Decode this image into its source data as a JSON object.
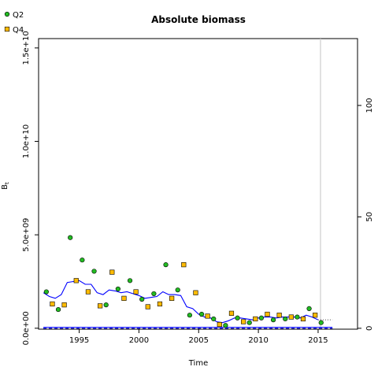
{
  "chart_data": {
    "type": "scatter",
    "title": "Absolute biomass",
    "xlabel": "Time",
    "ylabel": "B",
    "ylabel_sub": "t",
    "xlim": [
      1991.6,
      2018.3
    ],
    "ylim": [
      -50000000.0,
      15500000000.0
    ],
    "y2lim": [
      -0.4,
      130
    ],
    "x_ticks": [
      1995,
      2000,
      2005,
      2010,
      2015
    ],
    "y_ticks": [
      0,
      5000000000.0,
      10000000000.0,
      15000000000.0
    ],
    "y_tick_labels": [
      "0.0e+00",
      "5.0e+09",
      "1.0e+10",
      "1.5e+10"
    ],
    "y2_ticks": [
      0,
      50,
      100
    ],
    "y2_tick_labels": [
      "0",
      "50",
      "100"
    ],
    "x_tick_labels": [
      "1995",
      "2000",
      "2005",
      "2010",
      "2015"
    ],
    "legend": {
      "placement": "top-left",
      "entries": [
        {
          "label": "Q2",
          "color": "#22bb22"
        },
        {
          "label": "Q4",
          "color": "#ffbb00"
        }
      ]
    },
    "vline_x": 2015.2,
    "reference_lines": {
      "solid_blue_level": 50000000.0,
      "dashed_blue_level": 0.0,
      "dashed_black_level": 0.0
    },
    "series": [
      {
        "name": "Q2",
        "kind": "points",
        "color": "#22bb22",
        "x": [
          1992.25,
          1993.25,
          1994.25,
          1995.25,
          1996.25,
          1997.25,
          1998.25,
          1999.25,
          2000.25,
          2001.25,
          2002.25,
          2003.25,
          2004.25,
          2005.25,
          2006.25,
          2007.25,
          2008.25,
          2009.25,
          2010.25,
          2011.25,
          2012.25,
          2013.25,
          2014.25,
          2015.25
        ],
        "y": [
          1950000000.0,
          1000000000.0,
          4850000000.0,
          3650000000.0,
          3050000000.0,
          1250000000.0,
          2100000000.0,
          2550000000.0,
          1550000000.0,
          1850000000.0,
          3400000000.0,
          2050000000.0,
          700000000.0,
          750000000.0,
          500000000.0,
          150000000.0,
          550000000.0,
          300000000.0,
          550000000.0,
          450000000.0,
          500000000.0,
          600000000.0,
          1050000000.0,
          300000000.0
        ]
      },
      {
        "name": "Q4",
        "kind": "points",
        "color": "#ffbb00",
        "x": [
          1992.75,
          1993.75,
          1994.75,
          1995.75,
          1996.75,
          1997.75,
          1998.75,
          1999.75,
          2000.75,
          2001.75,
          2002.75,
          2003.75,
          2004.75,
          2005.75,
          2006.75,
          2007.75,
          2008.75,
          2009.75,
          2010.75,
          2011.75,
          2012.75,
          2013.75,
          2014.75
        ],
        "y": [
          1300000000.0,
          1250000000.0,
          2550000000.0,
          1950000000.0,
          1200000000.0,
          3000000000.0,
          1600000000.0,
          1950000000.0,
          1150000000.0,
          1300000000.0,
          1600000000.0,
          3400000000.0,
          1900000000.0,
          650000000.0,
          200000000.0,
          800000000.0,
          350000000.0,
          500000000.0,
          750000000.0,
          700000000.0,
          600000000.0,
          500000000.0,
          700000000.0
        ]
      },
      {
        "name": "",
        "kind": "line",
        "color": "#0000ff",
        "x": [
          1992.0,
          1992.5,
          1993.0,
          1993.5,
          1994.0,
          1994.5,
          1995.0,
          1995.5,
          1996.0,
          1996.5,
          1997.0,
          1997.5,
          1998.0,
          1998.5,
          1999.0,
          1999.5,
          2000.0,
          2000.5,
          2001.0,
          2001.5,
          2002.0,
          2002.5,
          2003.0,
          2003.5,
          2004.0,
          2004.5,
          2005.0,
          2005.5,
          2006.0,
          2006.5,
          2007.0,
          2007.5,
          2008.0,
          2008.5,
          2009.0,
          2009.5,
          2010.0,
          2010.5,
          2011.0,
          2011.5,
          2012.0,
          2012.5,
          2013.0,
          2013.5,
          2014.0,
          2014.5,
          2015.0
        ],
        "y": [
          1900000000.0,
          1700000000.0,
          1600000000.0,
          1800000000.0,
          2450000000.0,
          2500000000.0,
          2550000000.0,
          2350000000.0,
          2350000000.0,
          1900000000.0,
          1800000000.0,
          2050000000.0,
          2000000000.0,
          1900000000.0,
          1950000000.0,
          1850000000.0,
          1750000000.0,
          1600000000.0,
          1650000000.0,
          1700000000.0,
          1950000000.0,
          1800000000.0,
          1800000000.0,
          1750000000.0,
          1150000000.0,
          1050000000.0,
          750000000.0,
          600000000.0,
          550000000.0,
          350000000.0,
          300000000.0,
          400000000.0,
          550000000.0,
          550000000.0,
          500000000.0,
          450000000.0,
          550000000.0,
          600000000.0,
          600000000.0,
          550000000.0,
          600000000.0,
          600000000.0,
          600000000.0,
          550000000.0,
          700000000.0,
          600000000.0,
          450000000.0
        ]
      },
      {
        "name": "",
        "kind": "dotted",
        "color": "#444444",
        "x": [
          2015.0,
          2016.2
        ],
        "y": [
          450000000.0,
          450000000.0
        ]
      }
    ],
    "grid": false
  }
}
